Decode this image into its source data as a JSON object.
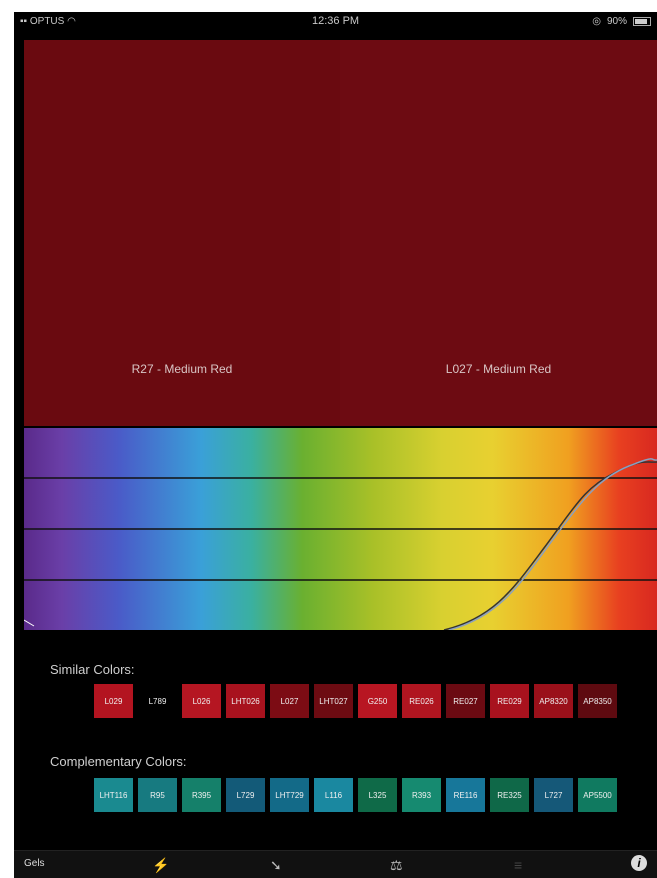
{
  "status_bar": {
    "carrier": "OPTUS",
    "time": "12:36 PM",
    "battery": "90%"
  },
  "swatches": {
    "left_label": "R27 - Medium Red",
    "right_label": "L027 - Medium Red",
    "left_color": "#6a0a10",
    "right_color": "#6d0b12"
  },
  "similar": {
    "title": "Similar Colors:",
    "items": [
      {
        "label": "L029",
        "color": "#b31420"
      },
      {
        "label": "L789",
        "color": "#000000"
      },
      {
        "label": "L026",
        "color": "#b51622"
      },
      {
        "label": "LHT026",
        "color": "#a8121e"
      },
      {
        "label": "L027",
        "color": "#7c0c14"
      },
      {
        "label": "LHT027",
        "color": "#6d0b12"
      },
      {
        "label": "G250",
        "color": "#b81622"
      },
      {
        "label": "RE026",
        "color": "#b01520"
      },
      {
        "label": "RE027",
        "color": "#6b0a12"
      },
      {
        "label": "RE029",
        "color": "#a8121e"
      },
      {
        "label": "AP8320",
        "color": "#9a101a"
      },
      {
        "label": "AP8350",
        "color": "#5e0a10"
      }
    ]
  },
  "complementary": {
    "title": "Complementary Colors:",
    "items": [
      {
        "label": "LHT116",
        "color": "#1a8a90"
      },
      {
        "label": "R95",
        "color": "#177a80"
      },
      {
        "label": "R395",
        "color": "#15806a"
      },
      {
        "label": "L729",
        "color": "#135a78"
      },
      {
        "label": "LHT729",
        "color": "#136a88"
      },
      {
        "label": "L116",
        "color": "#1a88a0"
      },
      {
        "label": "L325",
        "color": "#0f6a48"
      },
      {
        "label": "R393",
        "color": "#168a70"
      },
      {
        "label": "RE116",
        "color": "#17779a"
      },
      {
        "label": "RE325",
        "color": "#0f6848"
      },
      {
        "label": "L727",
        "color": "#155878"
      },
      {
        "label": "AP5500",
        "color": "#107a60"
      }
    ]
  },
  "tabbar": {
    "gels_label": "Gels"
  }
}
